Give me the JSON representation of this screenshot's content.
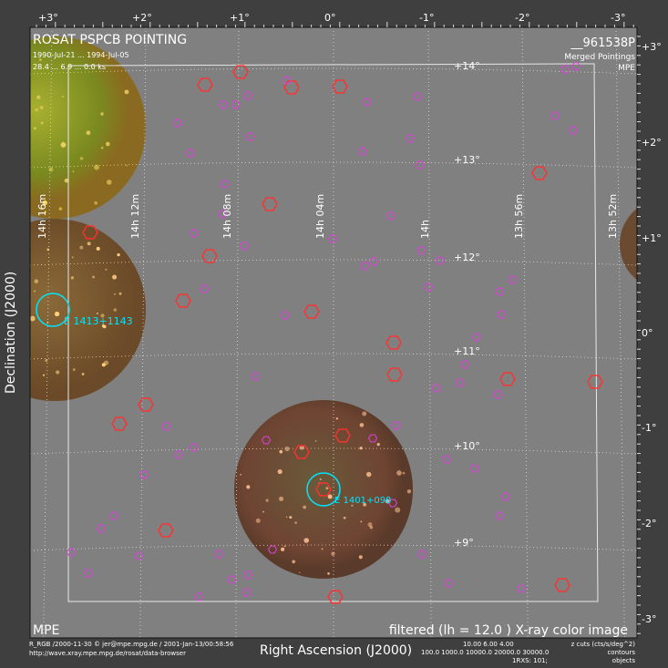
{
  "header": {
    "title": "ROSAT PSPCB POINTING",
    "date_range": "1990-Jul-21 ... 1994-Jul-05",
    "levels": "28.4 ... 6.9 ... 0.0 ks",
    "pointing_id": "__961538P",
    "mode": "Merged Pointings",
    "institute": "MPE"
  },
  "top_axis_ticks": [
    "+3°",
    "+2°",
    "+1°",
    "0°",
    "-1°",
    "-2°",
    "-3°"
  ],
  "right_axis_ticks": [
    "+3°",
    "+2°",
    "+1°",
    "0°",
    "-1°",
    "-2°",
    "-3°"
  ],
  "dec_grid_labels": [
    "+14°",
    "+13°",
    "+12°",
    "+11°",
    "+10°",
    "+9°"
  ],
  "ra_grid_labels": [
    "14h 16m",
    "14h 12m",
    "14h 08m",
    "14h 04m",
    "14h",
    "13h 56m",
    "13h 52m"
  ],
  "sources": [
    {
      "label": "E 1413+1143",
      "color": "#00e5ff"
    },
    {
      "label": "E 1401+098",
      "color": "#00e5ff"
    }
  ],
  "y_axis_label": "Declination (J2000)",
  "x_axis_label": "Right Ascension (J2000)",
  "footer": {
    "left_logo": "MPE",
    "filter_caption": "filtered (lh =  12.0 ) X-ray color image",
    "credit": "R_RGB /2000-11-30 © jer@mpe.mpg.de / 2001-Jan-13/00:58:56",
    "url": "http://wave.xray.mpe.mpg.de/rosat/data-browser",
    "cuts_values": "10.00   6.00   4.00",
    "cuts_label": "z cuts (cts/s/deg^2)",
    "contour_values": "100.0  1000.0  10000.0 20000.0  30000.0",
    "contours_label": "contours",
    "objects_values": "1RXS: 101;",
    "objects_label": "objects"
  },
  "colors": {
    "background": "#3f3f3f",
    "plot": "#808080",
    "red_marker": "#ff3030",
    "magenta_marker": "#e040e0",
    "cyan": "#00e5ff"
  }
}
